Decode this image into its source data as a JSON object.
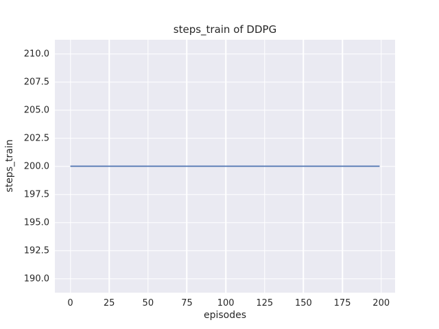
{
  "chart_data": {
    "type": "line",
    "title": "steps_train of DDPG",
    "xlabel": "episodes",
    "ylabel": "steps_train",
    "x": [
      0,
      199
    ],
    "series": [
      {
        "name": "steps_train",
        "values": [
          200,
          200
        ],
        "color": "#4c72b0"
      }
    ],
    "xlim": [
      -9.95,
      208.95
    ],
    "ylim": [
      188.75,
      211.25
    ],
    "xtick_values": [
      0,
      25,
      50,
      75,
      100,
      125,
      150,
      175,
      200
    ],
    "xtick_labels": [
      "0",
      "25",
      "50",
      "75",
      "100",
      "125",
      "150",
      "175",
      "200"
    ],
    "ytick_values": [
      190.0,
      192.5,
      195.0,
      197.5,
      200.0,
      202.5,
      205.0,
      207.5,
      210.0
    ],
    "ytick_labels": [
      "190.0",
      "192.5",
      "195.0",
      "197.5",
      "200.0",
      "202.5",
      "205.0",
      "207.5",
      "210.0"
    ],
    "grid": true,
    "legend": "none",
    "colors": {
      "figure_background": "#ffffff",
      "plot_background": "#eaeaf2",
      "gridline": "#ffffff",
      "text": "#262626",
      "line": "#4c72b0"
    }
  }
}
